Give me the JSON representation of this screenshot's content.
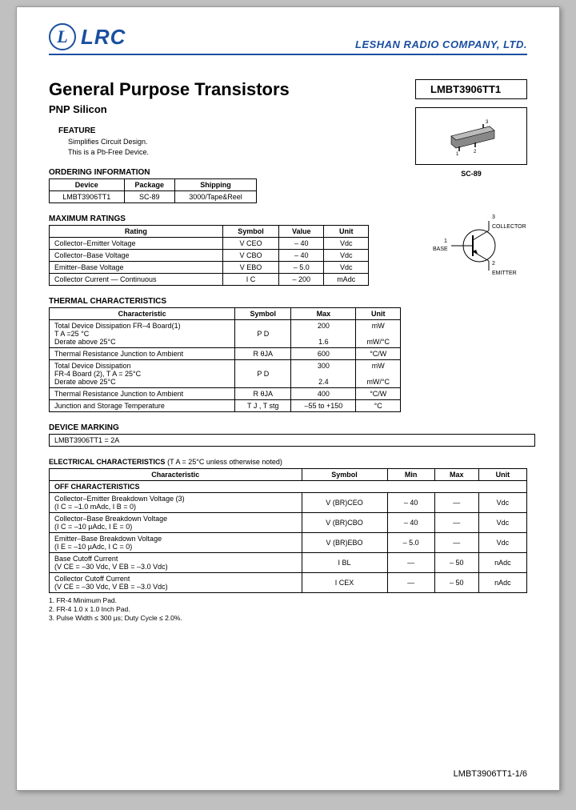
{
  "header": {
    "logo_text": "LRC",
    "company": "LESHAN RADIO COMPANY, LTD."
  },
  "title": "General Purpose Transistors",
  "subtitle": "PNP Silicon",
  "part_number": "LMBT3906TT1",
  "package_label": "SC-89",
  "feature": {
    "heading": "FEATURE",
    "lines": [
      "Simplifies Circuit Design.",
      "This is a Pb-Free Device."
    ]
  },
  "ordering": {
    "heading": "ORDERING INFORMATION",
    "cols": [
      "Device",
      "Package",
      "Shipping"
    ],
    "row": [
      "LMBT3906TT1",
      "SC-89",
      "3000/Tape&Reel"
    ]
  },
  "max_ratings": {
    "heading": "MAXIMUM RATINGS",
    "cols": [
      "Rating",
      "Symbol",
      "Value",
      "Unit"
    ],
    "rows": [
      [
        "Collector–Emitter Voltage",
        "V CEO",
        "– 40",
        "Vdc"
      ],
      [
        "Collector–Base Voltage",
        "V CBO",
        "– 40",
        "Vdc"
      ],
      [
        "Emitter–Base Voltage",
        "V EBO",
        "– 5.0",
        "Vdc"
      ],
      [
        "Collector Current — Continuous",
        "I C",
        "– 200",
        "mAdc"
      ]
    ]
  },
  "thermal": {
    "heading": "THERMAL CHARACTERISTICS",
    "cols": [
      "Characteristic",
      "Symbol",
      "Max",
      "Unit"
    ],
    "rows": [
      [
        "Total Device Dissipation FR–4 Board(1)\n  T A =25 °C\n  Derate above 25°C",
        "P D",
        "200\n\n1.6",
        "mW\n\nmW/°C"
      ],
      [
        "Thermal Resistance Junction to Ambient",
        "R θJA",
        "600",
        "°C/W"
      ],
      [
        "Total Device Dissipation\nFR-4 Board (2), T A = 25°C\nDerate above 25°C",
        "P D",
        "300\n\n2.4",
        "mW\n\nmW/°C"
      ],
      [
        "Thermal Resistance Junction to Ambient",
        "R θJA",
        "400",
        "°C/W"
      ],
      [
        "Junction and Storage Temperature",
        "T J , T stg",
        "–55 to +150",
        "°C"
      ]
    ]
  },
  "marking": {
    "heading": "DEVICE MARKING",
    "text": "LMBT3906TT1 = 2A"
  },
  "electrical": {
    "heading": "ELECTRICAL CHARACTERISTICS",
    "cond": "(T A = 25°C unless otherwise noted)",
    "cols": [
      "Characteristic",
      "Symbol",
      "Min",
      "Max",
      "Unit"
    ],
    "subhead": "OFF CHARACTERISTICS",
    "rows": [
      [
        "Collector–Emitter Breakdown Voltage (3)\n(I C = –1.0 mAdc, I B = 0)",
        "V (BR)CEO",
        "– 40",
        "—",
        "Vdc"
      ],
      [
        "Collector–Base Breakdown Voltage\n(I C = –10 µAdc, I E = 0)",
        "V (BR)CBO",
        "– 40",
        "—",
        "Vdc"
      ],
      [
        "Emitter–Base Breakdown Voltage\n(I E = –10 µAdc, I C = 0)",
        "V (BR)EBO",
        "– 5.0",
        "—",
        "Vdc"
      ],
      [
        "Base Cutoff Current\n(V CE = –30 Vdc, V EB = –3.0 Vdc)",
        "I BL",
        "—",
        "– 50",
        "nAdc"
      ],
      [
        "Collector Cutoff Current\n(V CE = –30 Vdc, V EB = –3.0 Vdc)",
        "I CEX",
        "—",
        "– 50",
        "nAdc"
      ]
    ]
  },
  "notes": [
    "1. FR-4 Minimum Pad.",
    "2. FR-4 1.0 x 1.0 Inch Pad.",
    "3. Pulse Width ≤ 300 µs; Duty Cycle ≤ 2.0%."
  ],
  "schematic": {
    "pin1": "1",
    "pin1_name": "BASE",
    "pin2": "2",
    "pin2_name": "EMITTER",
    "pin3": "3",
    "pin3_name": "COLLECTOR"
  },
  "footer": "LMBT3906TT1-1/6"
}
